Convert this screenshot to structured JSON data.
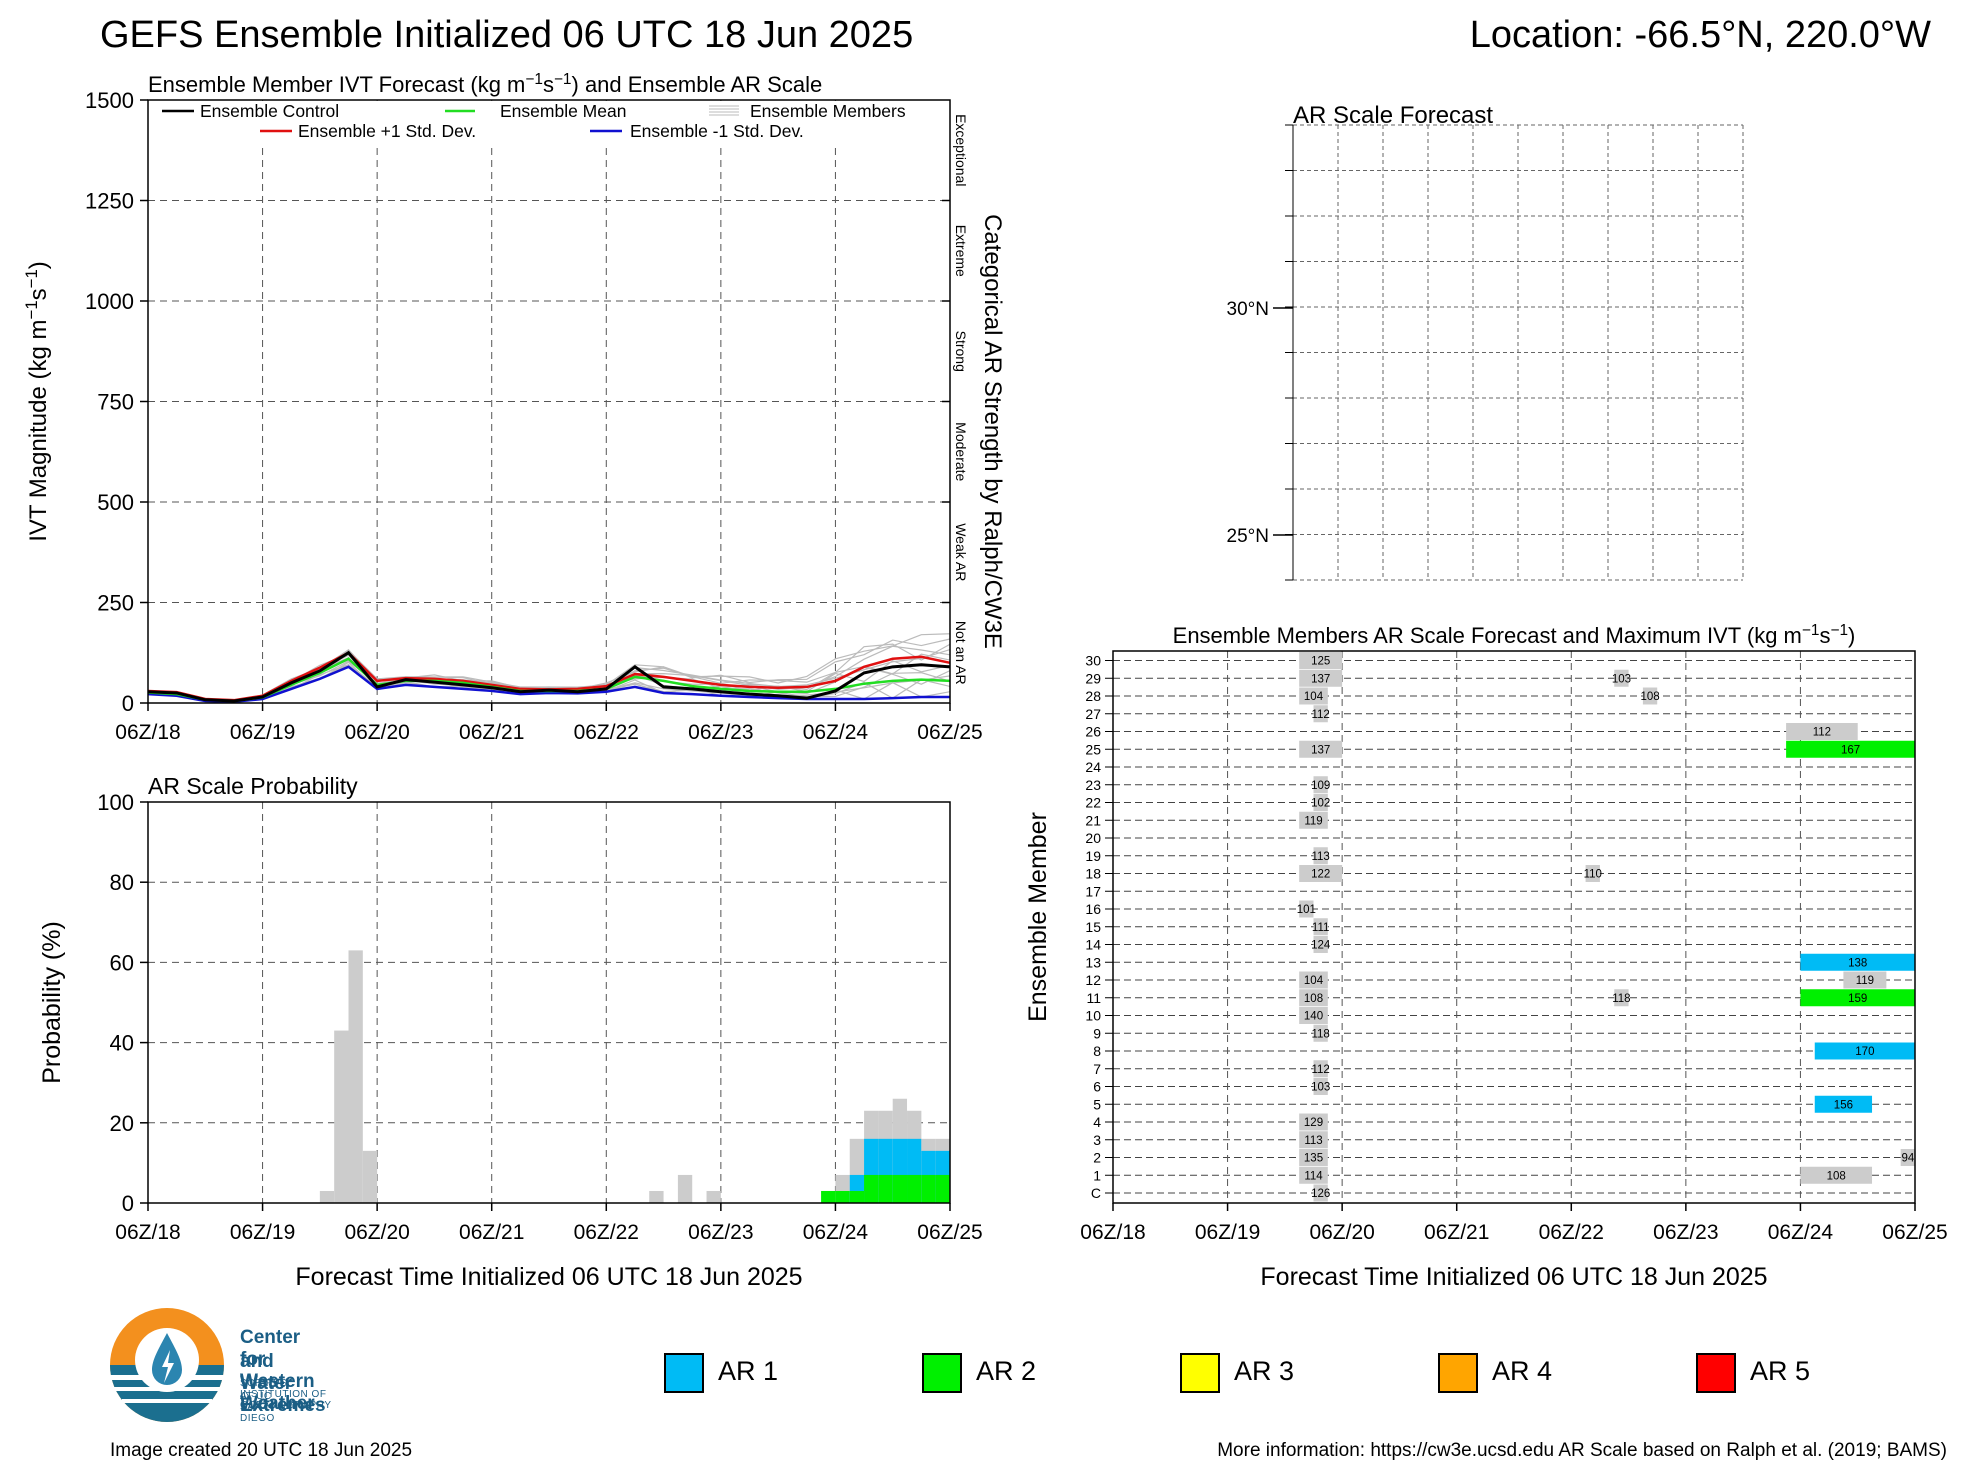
{
  "title": "GEFS Ensemble Initialized 06 UTC 18 Jun 2025",
  "location": "Location: -66.5°N, 220.0°W",
  "ivt_panel": {
    "title_parts": [
      "Ensemble Member IVT Forecast (kg m",
      "−1",
      "s",
      "−1",
      ") and Ensemble AR Scale"
    ],
    "ylabel_parts": [
      "IVT Magnitude (kg m",
      "−1",
      "s",
      "−1",
      ")"
    ],
    "right_label": "Categorical AR Strength by Ralph/CW3E",
    "categories": [
      "Exceptional",
      "Extreme",
      "Strong",
      "Moderate",
      "Weak AR",
      "Not an AR"
    ],
    "legend": {
      "control": "Ensemble Control",
      "mean": "Ensemble Mean",
      "members": "Ensemble Members",
      "plus": "Ensemble +1 Std. Dev.",
      "minus": "Ensemble -1 Std. Dev."
    },
    "colors": {
      "control": "#000000",
      "mean": "#22dd22",
      "members": "#bbbbbb",
      "plus": "#e01010",
      "minus": "#1010d0"
    }
  },
  "prob_panel": {
    "title": "AR Scale Probability",
    "ylabel": "Probability (%)",
    "xlabel": "Forecast Time Initialized 06 UTC 18 Jun 2025"
  },
  "map_panel": {
    "title": "AR Scale Forecast",
    "lat_labels": [
      "30°N",
      "25°N"
    ]
  },
  "member_panel": {
    "title_parts": [
      "Ensemble Members AR Scale Forecast and Maximum IVT (kg m",
      "−1",
      "s",
      "−1",
      ")"
    ],
    "ylabel": "Ensemble Member",
    "xlabel": "Forecast Time Initialized 06 UTC 18 Jun 2025",
    "row_labels": [
      "C",
      "1",
      "2",
      "3",
      "4",
      "5",
      "6",
      "7",
      "8",
      "9",
      "10",
      "11",
      "12",
      "13",
      "14",
      "15",
      "16",
      "17",
      "18",
      "19",
      "20",
      "21",
      "22",
      "23",
      "24",
      "25",
      "26",
      "27",
      "28",
      "29",
      "30"
    ]
  },
  "x_ticks": [
    "06Z/18",
    "06Z/19",
    "06Z/20",
    "06Z/21",
    "06Z/22",
    "06Z/23",
    "06Z/24",
    "06Z/25"
  ],
  "ar_legend": [
    {
      "label": "AR 1",
      "color": "#00bbf5"
    },
    {
      "label": "AR 2",
      "color": "#00f000"
    },
    {
      "label": "AR 3",
      "color": "#ffff00"
    },
    {
      "label": "AR 4",
      "color": "#ffa500"
    },
    {
      "label": "AR 5",
      "color": "#ff0000"
    }
  ],
  "logo": {
    "line1": "Center for Western Weather",
    "line2": "and Water Extremes",
    "line3": "SCRIPPS INSTITUTION OF OCEANOGRAPHY",
    "line4": "AT UC SAN DIEGO"
  },
  "footer": {
    "created": "Image created 20 UTC 18 Jun 2025",
    "more_info": "More information: https://cw3e.ucsd.edu AR Scale based on Ralph et al. (2019; BAMS)"
  },
  "chart_data": [
    {
      "type": "line",
      "name": "ivt",
      "ylim": [
        0,
        1500
      ],
      "xlim_hours": [
        0,
        168
      ],
      "yticks": [
        0,
        250,
        500,
        750,
        1000,
        1250,
        1500
      ],
      "grid": true,
      "legend_placement": "top",
      "x_hours": [
        0,
        6,
        12,
        18,
        24,
        30,
        36,
        42,
        48,
        54,
        60,
        66,
        72,
        78,
        84,
        90,
        96,
        102,
        108,
        114,
        120,
        126,
        132,
        138,
        144,
        150,
        156,
        162,
        168
      ],
      "series": [
        {
          "key": "control",
          "values": [
            28,
            25,
            8,
            5,
            15,
            50,
            80,
            125,
            40,
            58,
            52,
            45,
            38,
            28,
            32,
            28,
            35,
            90,
            40,
            35,
            28,
            22,
            18,
            12,
            30,
            75,
            90,
            95,
            90
          ]
        },
        {
          "key": "mean",
          "values": [
            26,
            22,
            8,
            5,
            14,
            45,
            75,
            110,
            45,
            55,
            55,
            50,
            40,
            30,
            30,
            30,
            35,
            65,
            55,
            42,
            35,
            30,
            28,
            28,
            35,
            48,
            55,
            58,
            55
          ]
        },
        {
          "key": "plus",
          "values": [
            30,
            27,
            10,
            7,
            18,
            55,
            88,
            125,
            55,
            62,
            60,
            55,
            45,
            35,
            34,
            35,
            42,
            72,
            65,
            55,
            45,
            40,
            38,
            40,
            55,
            90,
            110,
            115,
            100
          ]
        },
        {
          "key": "minus",
          "values": [
            22,
            18,
            5,
            3,
            10,
            35,
            60,
            90,
            35,
            45,
            40,
            35,
            30,
            22,
            25,
            24,
            28,
            40,
            25,
            22,
            18,
            15,
            12,
            10,
            10,
            10,
            12,
            15,
            15
          ]
        }
      ],
      "members_envelope_max": [
        30,
        28,
        10,
        8,
        20,
        60,
        95,
        135,
        60,
        70,
        70,
        65,
        55,
        45,
        40,
        40,
        50,
        95,
        90,
        80,
        70,
        65,
        60,
        75,
        110,
        150,
        175,
        170,
        185
      ]
    },
    {
      "type": "bar",
      "name": "ar_probability",
      "ylim": [
        0,
        100
      ],
      "yticks": [
        0,
        20,
        40,
        60,
        80,
        100
      ],
      "bar_width_hours": 3,
      "bins": [
        {
          "t": 36,
          "not_ar": 3,
          "ar1": 0,
          "ar2": 0
        },
        {
          "t": 39,
          "not_ar": 43,
          "ar1": 0,
          "ar2": 0
        },
        {
          "t": 42,
          "not_ar": 63,
          "ar1": 0,
          "ar2": 0
        },
        {
          "t": 45,
          "not_ar": 13,
          "ar1": 0,
          "ar2": 0
        },
        {
          "t": 105,
          "not_ar": 3,
          "ar1": 0,
          "ar2": 0
        },
        {
          "t": 111,
          "not_ar": 7,
          "ar1": 0,
          "ar2": 0
        },
        {
          "t": 117,
          "not_ar": 3,
          "ar1": 0,
          "ar2": 0
        },
        {
          "t": 141,
          "not_ar": 3,
          "ar1": 0,
          "ar2": 3
        },
        {
          "t": 144,
          "not_ar": 7,
          "ar1": 0,
          "ar2": 3
        },
        {
          "t": 147,
          "not_ar": 16,
          "ar1": 7,
          "ar2": 3
        },
        {
          "t": 150,
          "not_ar": 23,
          "ar1": 16,
          "ar2": 7
        },
        {
          "t": 153,
          "not_ar": 23,
          "ar1": 16,
          "ar2": 7
        },
        {
          "t": 156,
          "not_ar": 26,
          "ar1": 16,
          "ar2": 7
        },
        {
          "t": 159,
          "not_ar": 23,
          "ar1": 16,
          "ar2": 7
        },
        {
          "t": 162,
          "not_ar": 16,
          "ar1": 13,
          "ar2": 7
        },
        {
          "t": 165,
          "not_ar": 16,
          "ar1": 13,
          "ar2": 7
        }
      ]
    },
    {
      "type": "table",
      "name": "member_ar_scale",
      "xlim_hours": [
        0,
        168
      ],
      "segments": [
        {
          "row": 0,
          "start": 42,
          "end": 45,
          "cat": 0,
          "ivt": 126
        },
        {
          "row": 1,
          "start": 39,
          "end": 45,
          "cat": 0,
          "ivt": 114
        },
        {
          "row": 1,
          "start": 144,
          "end": 159,
          "cat": 0,
          "ivt": 108
        },
        {
          "row": 2,
          "start": 39,
          "end": 45,
          "cat": 0,
          "ivt": 135
        },
        {
          "row": 2,
          "start": 165,
          "end": 168,
          "cat": 0,
          "ivt": 94
        },
        {
          "row": 3,
          "start": 39,
          "end": 45,
          "cat": 0,
          "ivt": 113
        },
        {
          "row": 4,
          "start": 39,
          "end": 45,
          "cat": 0,
          "ivt": 129
        },
        {
          "row": 5,
          "start": 147,
          "end": 159,
          "cat": 1,
          "ivt": 156
        },
        {
          "row": 6,
          "start": 42,
          "end": 45,
          "cat": 0,
          "ivt": 103
        },
        {
          "row": 7,
          "start": 42,
          "end": 45,
          "cat": 0,
          "ivt": 112
        },
        {
          "row": 8,
          "start": 147,
          "end": 168,
          "cat": 1,
          "ivt": 170
        },
        {
          "row": 9,
          "start": 42,
          "end": 45,
          "cat": 0,
          "ivt": 118
        },
        {
          "row": 10,
          "start": 39,
          "end": 45,
          "cat": 0,
          "ivt": 140
        },
        {
          "row": 11,
          "start": 39,
          "end": 45,
          "cat": 0,
          "ivt": 108
        },
        {
          "row": 11,
          "start": 105,
          "end": 108,
          "cat": 0,
          "ivt": 118
        },
        {
          "row": 11,
          "start": 144,
          "end": 168,
          "cat": 2,
          "ivt": 159
        },
        {
          "row": 12,
          "start": 39,
          "end": 45,
          "cat": 0,
          "ivt": 104
        },
        {
          "row": 12,
          "start": 153,
          "end": 162,
          "cat": 0,
          "ivt": 119
        },
        {
          "row": 13,
          "start": 144,
          "end": 168,
          "cat": 1,
          "ivt": 138
        },
        {
          "row": 14,
          "start": 42,
          "end": 45,
          "cat": 0,
          "ivt": 124
        },
        {
          "row": 15,
          "start": 42,
          "end": 45,
          "cat": 0,
          "ivt": 111
        },
        {
          "row": 16,
          "start": 39,
          "end": 42,
          "cat": 0,
          "ivt": 101
        },
        {
          "row": 18,
          "start": 39,
          "end": 48,
          "cat": 0,
          "ivt": 122
        },
        {
          "row": 18,
          "start": 99,
          "end": 102,
          "cat": 0,
          "ivt": 110
        },
        {
          "row": 19,
          "start": 42,
          "end": 45,
          "cat": 0,
          "ivt": 113
        },
        {
          "row": 21,
          "start": 39,
          "end": 45,
          "cat": 0,
          "ivt": 119
        },
        {
          "row": 22,
          "start": 42,
          "end": 45,
          "cat": 0,
          "ivt": 102
        },
        {
          "row": 23,
          "start": 42,
          "end": 45,
          "cat": 0,
          "ivt": 109
        },
        {
          "row": 25,
          "start": 39,
          "end": 48,
          "cat": 0,
          "ivt": 137
        },
        {
          "row": 25,
          "start": 141,
          "end": 168,
          "cat": 2,
          "ivt": 167
        },
        {
          "row": 26,
          "start": 141,
          "end": 156,
          "cat": 0,
          "ivt": 112
        },
        {
          "row": 27,
          "start": 42,
          "end": 45,
          "cat": 0,
          "ivt": 112
        },
        {
          "row": 28,
          "start": 39,
          "end": 45,
          "cat": 0,
          "ivt": 104
        },
        {
          "row": 28,
          "start": 111,
          "end": 114,
          "cat": 0,
          "ivt": 108
        },
        {
          "row": 29,
          "start": 39,
          "end": 48,
          "cat": 0,
          "ivt": 137
        },
        {
          "row": 29,
          "start": 105,
          "end": 108,
          "cat": 0,
          "ivt": 103
        },
        {
          "row": 30,
          "start": 39,
          "end": 48,
          "cat": 0,
          "ivt": 125
        }
      ]
    }
  ]
}
